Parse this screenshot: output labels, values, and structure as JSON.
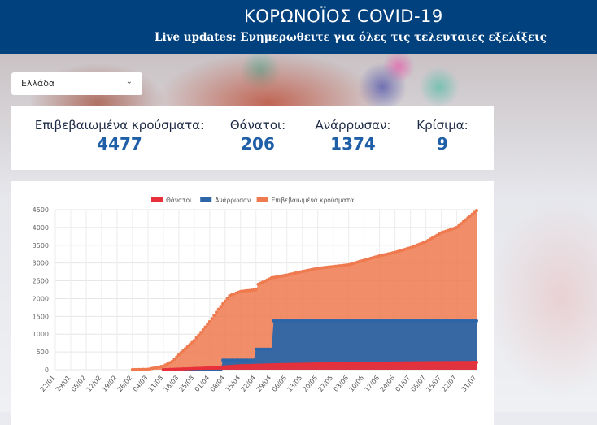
{
  "header": {
    "title": "ΚΟΡΩΝΟΪΟΣ COVID-19",
    "subtitle": "Live updates: Ενημερωθειτε για όλες τις τελευταιες εξελίξεις"
  },
  "country_select": {
    "value": "Ελλάδα",
    "icon": "chevron-down-icon"
  },
  "stats": [
    {
      "label": "Επιβεβαιωμένα κρούσματα:",
      "value": "4477"
    },
    {
      "label": "Θάνατοι:",
      "value": "206"
    },
    {
      "label": "Ανάρρωσαν:",
      "value": "1374"
    },
    {
      "label": "Κρίσιμα:",
      "value": "9"
    }
  ],
  "chart_data": {
    "type": "area",
    "legend_position": "top",
    "grid": true,
    "ylim": [
      0,
      4500
    ],
    "yticks": [
      0,
      500,
      1000,
      1500,
      2000,
      2500,
      3000,
      3500,
      4000,
      4500
    ],
    "xlim": [
      "2020-01-22",
      "2020-07-31"
    ],
    "xticks": [
      "22/01",
      "29/01",
      "05/02",
      "12/02",
      "19/02",
      "26/02",
      "04/03",
      "11/03",
      "18/03",
      "25/03",
      "01/04",
      "08/04",
      "15/04",
      "22/04",
      "29/04",
      "06/05",
      "13/05",
      "20/05",
      "27/05",
      "03/06",
      "10/06",
      "17/06",
      "24/06",
      "01/07",
      "08/07",
      "15/07",
      "22/07",
      "31/07"
    ],
    "series": [
      {
        "name": "Θάνατοι",
        "color": "#e8303a",
        "points": [
          [
            "2020-03-11",
            0
          ],
          [
            "2020-04-01",
            50
          ],
          [
            "2020-04-15",
            110
          ],
          [
            "2020-05-01",
            140
          ],
          [
            "2020-06-01",
            175
          ],
          [
            "2020-07-01",
            192
          ],
          [
            "2020-07-31",
            206
          ]
        ]
      },
      {
        "name": "Ανάρρωσαν",
        "color": "#2c66a8",
        "step": true,
        "points": [
          [
            "2020-03-11",
            0
          ],
          [
            "2020-04-07",
            269
          ],
          [
            "2020-04-22",
            577
          ],
          [
            "2020-04-30",
            1374
          ],
          [
            "2020-07-31",
            1374
          ]
        ]
      },
      {
        "name": "Επιβεβαιωμένα κρούσματα",
        "color": "#ef7a4f",
        "points": [
          [
            "2020-02-26",
            3
          ],
          [
            "2020-03-04",
            10
          ],
          [
            "2020-03-11",
            100
          ],
          [
            "2020-03-15",
            230
          ],
          [
            "2020-03-18",
            420
          ],
          [
            "2020-03-25",
            820
          ],
          [
            "2020-04-01",
            1350
          ],
          [
            "2020-04-05",
            1700
          ],
          [
            "2020-04-10",
            2080
          ],
          [
            "2020-04-15",
            2200
          ],
          [
            "2020-04-22",
            2250
          ],
          [
            "2020-04-23",
            2400
          ],
          [
            "2020-04-29",
            2580
          ],
          [
            "2020-05-06",
            2660
          ],
          [
            "2020-05-13",
            2760
          ],
          [
            "2020-05-20",
            2850
          ],
          [
            "2020-05-27",
            2900
          ],
          [
            "2020-06-03",
            2950
          ],
          [
            "2020-06-10",
            3080
          ],
          [
            "2020-06-17",
            3200
          ],
          [
            "2020-06-24",
            3300
          ],
          [
            "2020-07-01",
            3430
          ],
          [
            "2020-07-08",
            3600
          ],
          [
            "2020-07-15",
            3850
          ],
          [
            "2020-07-22",
            4000
          ],
          [
            "2020-07-31",
            4477
          ]
        ]
      }
    ]
  }
}
